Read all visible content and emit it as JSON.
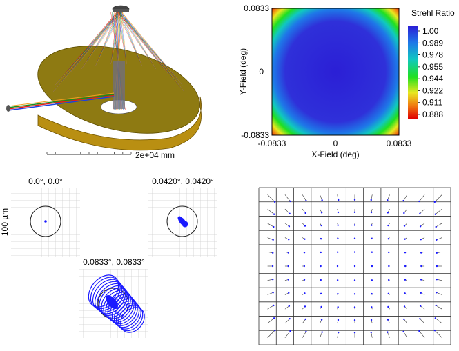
{
  "layout": {
    "scale_label": "2e+04 mm"
  },
  "strehl": {
    "title": "Strehl Ratio",
    "x_axis_label": "X-Field (deg)",
    "y_axis_label": "Y-Field (deg)",
    "x_ticks": [
      "-0.0833",
      "0",
      "0.0833"
    ],
    "y_ticks": [
      "0.0833",
      "0",
      "-0.0833"
    ],
    "colorbar_ticks": [
      "1.00",
      "0.989",
      "0.978",
      "0.955",
      "0.944",
      "0.922",
      "0.911",
      "0.888"
    ],
    "colors": {
      "max": "#2b1fd6",
      "min": "#e00000"
    }
  },
  "spots": {
    "scale_label": "100 µm",
    "fields": [
      {
        "label": "0.0°, 0.0°"
      },
      {
        "label": "0.0420°, 0.0420°"
      },
      {
        "label": "0.0833°, 0.0833°"
      }
    ]
  },
  "distortion_grid": {
    "rows": 11,
    "cols": 11
  }
}
